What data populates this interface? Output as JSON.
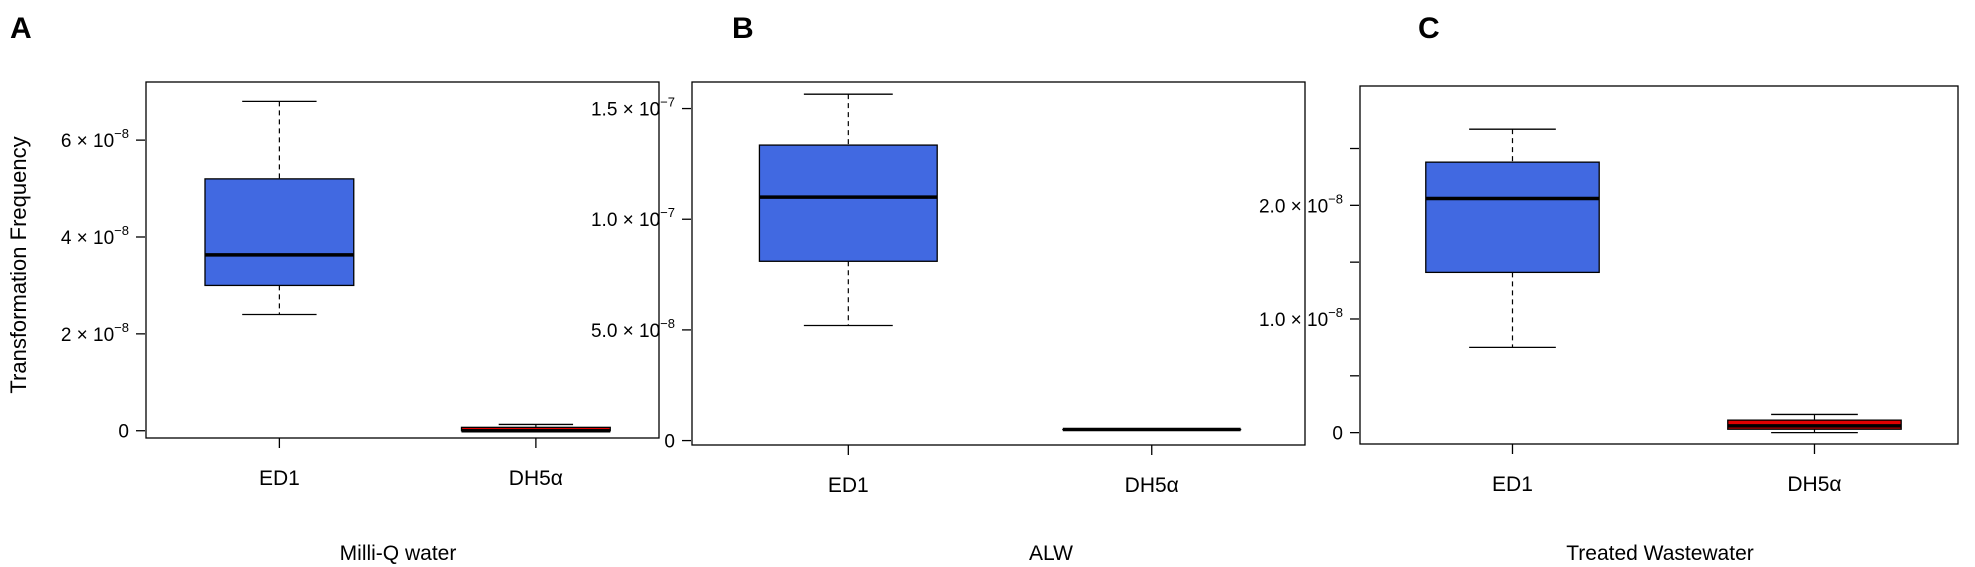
{
  "chart_data": [
    {
      "panel": "A",
      "type": "boxplot",
      "xlabel": "Milli-Q water",
      "ylabel": "Transformation Frequency",
      "categories": [
        "ED1",
        "DH5α"
      ],
      "ylim": [
        -1.5e-09,
        7.2e-08
      ],
      "yticks": [
        {
          "value": 0,
          "label": "0"
        },
        {
          "value": 2e-08,
          "label": "2 × 10",
          "exp": "−8"
        },
        {
          "value": 4e-08,
          "label": "4 × 10",
          "exp": "−8"
        },
        {
          "value": 6e-08,
          "label": "6 × 10",
          "exp": "−8"
        }
      ],
      "series": [
        {
          "category": "ED1",
          "color": "#4169E1",
          "min": 2.4e-08,
          "q1": 3e-08,
          "median": 3.63e-08,
          "q3": 5.2e-08,
          "max": 6.8e-08
        },
        {
          "category": "DH5α",
          "color": "#E00000",
          "min": 0,
          "q1": 0,
          "median": 0,
          "q3": 7e-10,
          "max": 1.3e-09
        }
      ]
    },
    {
      "panel": "B",
      "type": "boxplot",
      "xlabel": "ALW",
      "ylabel": "",
      "categories": [
        "ED1",
        "DH5α"
      ],
      "ylim": [
        -2e-09,
        1.62e-07
      ],
      "yticks": [
        {
          "value": 0,
          "label": "0"
        },
        {
          "value": 5e-08,
          "label": "5.0 × 10",
          "exp": "−8"
        },
        {
          "value": 1e-07,
          "label": "1.0 × 10",
          "exp": "−7"
        },
        {
          "value": 1.5e-07,
          "label": "1.5 × 10",
          "exp": "−7"
        }
      ],
      "series": [
        {
          "category": "ED1",
          "color": "#4169E1",
          "min": 5.2e-08,
          "q1": 8.1e-08,
          "median": 1.1e-07,
          "q3": 1.335e-07,
          "max": 1.565e-07
        },
        {
          "category": "DH5α",
          "color": "#E00000",
          "min": 5e-09,
          "q1": 5e-09,
          "median": 5e-09,
          "q3": 5e-09,
          "max": 5e-09
        }
      ]
    },
    {
      "panel": "C",
      "type": "boxplot",
      "xlabel": "Treated Wastewater",
      "ylabel": "",
      "categories": [
        "ED1",
        "DH5α"
      ],
      "ylim": [
        -1e-09,
        3.05e-08
      ],
      "yticks": [
        {
          "value": 0,
          "label": "0"
        },
        {
          "value": 5e-09,
          "label": ""
        },
        {
          "value": 1e-08,
          "label": "1.0 × 10",
          "exp": "−8"
        },
        {
          "value": 1.5e-08,
          "label": ""
        },
        {
          "value": 2e-08,
          "label": "2.0 × 10",
          "exp": "−8"
        },
        {
          "value": 2.5e-08,
          "label": ""
        }
      ],
      "series": [
        {
          "category": "ED1",
          "color": "#4169E1",
          "min": 7.5e-09,
          "q1": 1.41e-08,
          "median": 2.06e-08,
          "q3": 2.38e-08,
          "max": 2.67e-08
        },
        {
          "category": "DH5α",
          "color": "#E00000",
          "min": 0,
          "q1": 3e-10,
          "median": 6e-10,
          "q3": 1.1e-09,
          "max": 1.6e-09
        }
      ]
    }
  ]
}
